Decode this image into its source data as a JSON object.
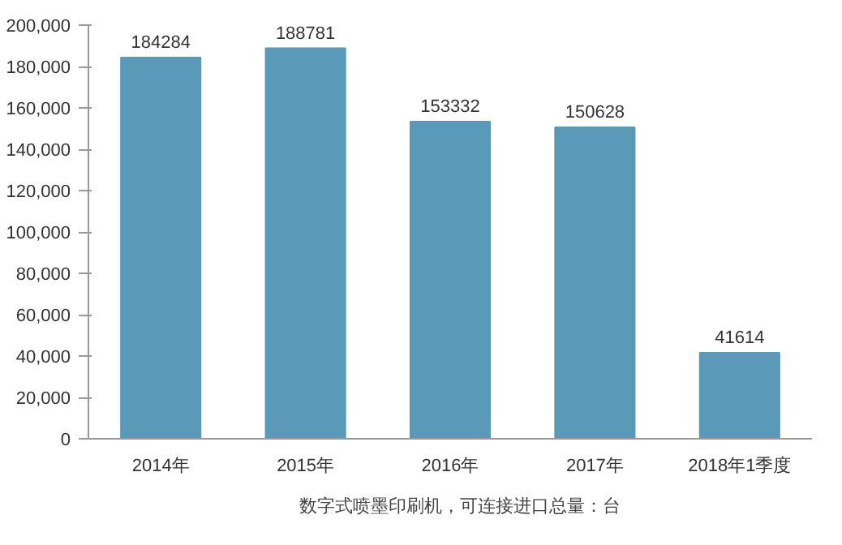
{
  "chart_data": {
    "type": "bar",
    "categories": [
      "2014年",
      "2015年",
      "2016年",
      "2017年",
      "2018年1季度"
    ],
    "series": [
      {
        "name": "数字式喷墨印刷机，可连接进口总量：台",
        "color": "#5a9ab8",
        "values": [
          184284,
          188781,
          153332,
          150628,
          41614
        ]
      }
    ],
    "ylim": [
      0,
      200000
    ],
    "yticks": [
      {
        "value": 0,
        "label": "0"
      },
      {
        "value": 20000,
        "label": "20,000"
      },
      {
        "value": 40000,
        "label": "40,000"
      },
      {
        "value": 60000,
        "label": "60,000"
      },
      {
        "value": 80000,
        "label": "80,000"
      },
      {
        "value": 100000,
        "label": "100,000"
      },
      {
        "value": 120000,
        "label": "120,000"
      },
      {
        "value": 140000,
        "label": "140,000"
      },
      {
        "value": 160000,
        "label": "160,000"
      },
      {
        "value": 180000,
        "label": "180,000"
      },
      {
        "value": 200000,
        "label": "200,000"
      }
    ],
    "data_labels": true,
    "grid": false,
    "legend": "bottom"
  }
}
